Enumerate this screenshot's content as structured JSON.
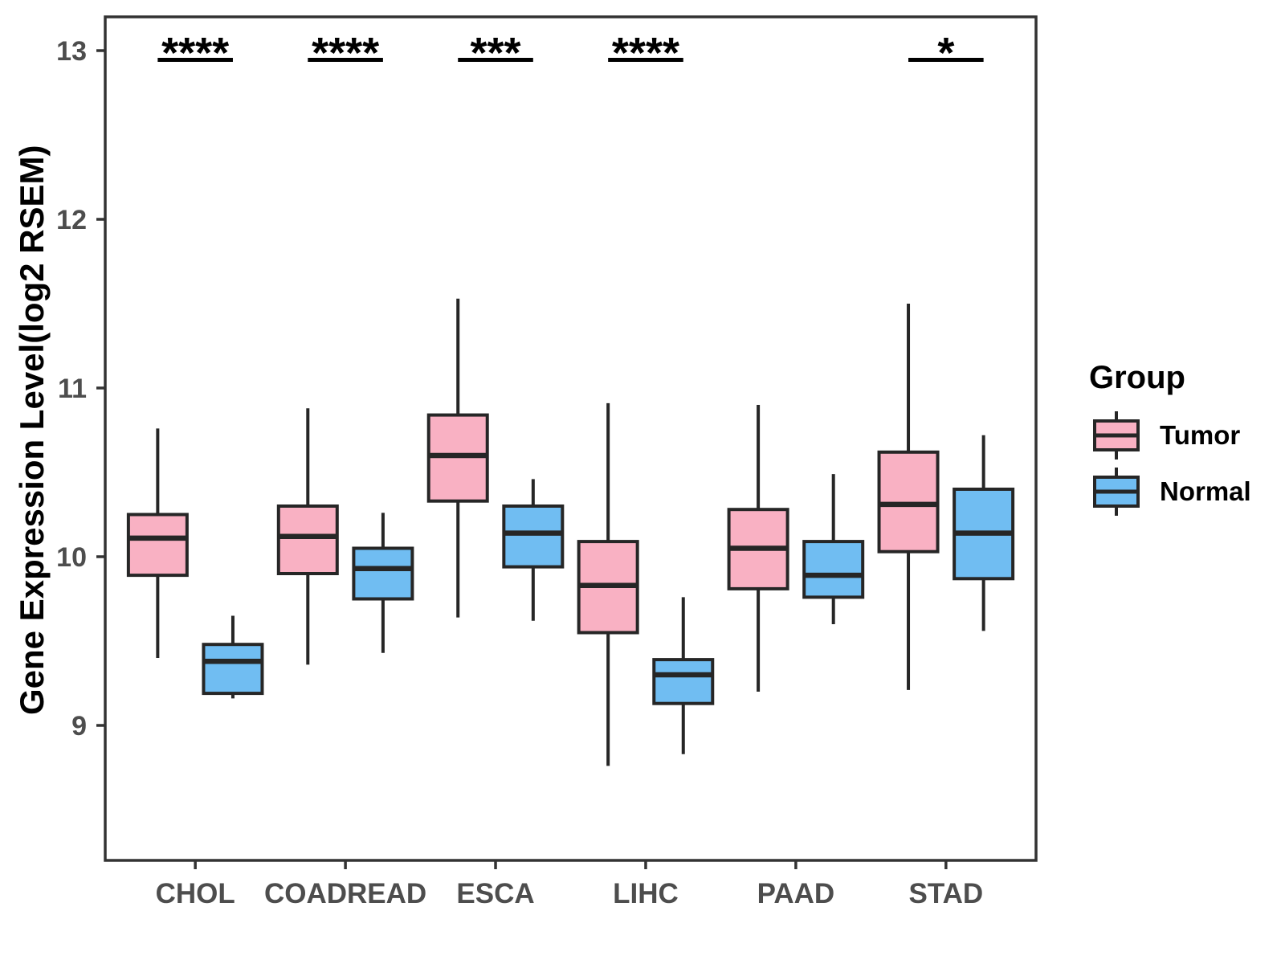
{
  "chart_data": {
    "type": "boxplot",
    "title": "",
    "xlabel": "",
    "ylabel": "Gene Expression Level(log2 RSEM)",
    "categories": [
      "CHOL",
      "COADREAD",
      "ESCA",
      "LIHC",
      "PAAD",
      "STAD"
    ],
    "y_ticks": [
      9,
      10,
      11,
      12,
      13
    ],
    "ylim": [
      8.2,
      13.2
    ],
    "grid": "off",
    "legend": {
      "title": "Group",
      "position": "right",
      "entries": [
        "Tumor",
        "Normal"
      ]
    },
    "colors": {
      "tumor_fill": "#F9B1C3",
      "normal_fill": "#70BDF2",
      "box_stroke": "#262626",
      "axis_stroke": "#333333",
      "tick_label": "#4D4D4D",
      "significance": "#000000"
    },
    "series": [
      {
        "name": "Tumor",
        "color": "#F9B1C3",
        "boxes": [
          {
            "category": "CHOL",
            "lower": 9.4,
            "q1": 9.89,
            "median": 10.11,
            "q3": 10.25,
            "upper": 10.76
          },
          {
            "category": "COADREAD",
            "lower": 9.36,
            "q1": 9.9,
            "median": 10.12,
            "q3": 10.3,
            "upper": 10.88
          },
          {
            "category": "ESCA",
            "lower": 9.64,
            "q1": 10.33,
            "median": 10.6,
            "q3": 10.84,
            "upper": 11.53
          },
          {
            "category": "LIHC",
            "lower": 8.76,
            "q1": 9.55,
            "median": 9.83,
            "q3": 10.09,
            "upper": 10.91
          },
          {
            "category": "PAAD",
            "lower": 9.2,
            "q1": 9.81,
            "median": 10.05,
            "q3": 10.28,
            "upper": 10.9
          },
          {
            "category": "STAD",
            "lower": 9.21,
            "q1": 10.03,
            "median": 10.31,
            "q3": 10.62,
            "upper": 11.5
          }
        ]
      },
      {
        "name": "Normal",
        "color": "#70BDF2",
        "boxes": [
          {
            "category": "CHOL",
            "lower": 9.16,
            "q1": 9.19,
            "median": 9.38,
            "q3": 9.48,
            "upper": 9.65
          },
          {
            "category": "COADREAD",
            "lower": 9.43,
            "q1": 9.75,
            "median": 9.93,
            "q3": 10.05,
            "upper": 10.26
          },
          {
            "category": "ESCA",
            "lower": 9.62,
            "q1": 9.94,
            "median": 10.14,
            "q3": 10.3,
            "upper": 10.46
          },
          {
            "category": "LIHC",
            "lower": 8.83,
            "q1": 9.13,
            "median": 9.3,
            "q3": 9.39,
            "upper": 9.76
          },
          {
            "category": "PAAD",
            "lower": 9.6,
            "q1": 9.76,
            "median": 9.89,
            "q3": 10.09,
            "upper": 10.49
          },
          {
            "category": "STAD",
            "lower": 9.56,
            "q1": 9.87,
            "median": 10.14,
            "q3": 10.4,
            "upper": 10.72
          }
        ]
      }
    ],
    "significance": [
      {
        "category": "CHOL",
        "label": "****"
      },
      {
        "category": "COADREAD",
        "label": "****"
      },
      {
        "category": "ESCA",
        "label": "***"
      },
      {
        "category": "LIHC",
        "label": "****"
      },
      {
        "category": "STAD",
        "label": "*"
      }
    ]
  }
}
